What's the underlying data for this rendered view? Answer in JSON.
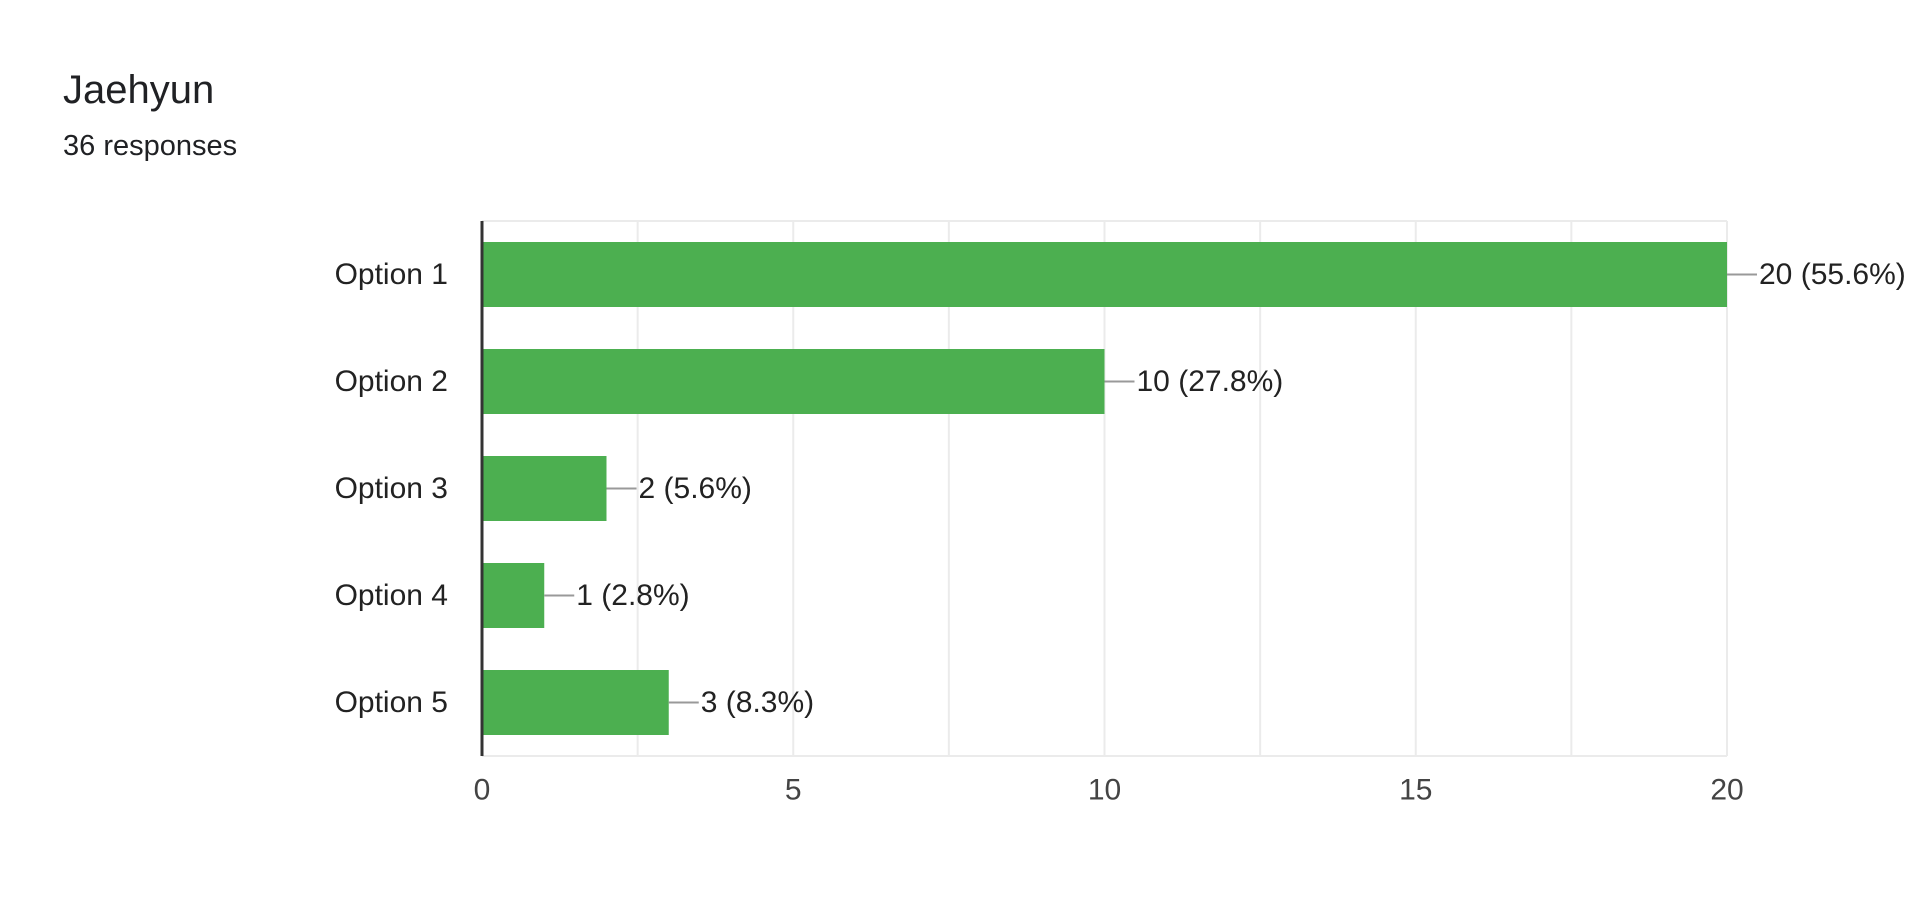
{
  "question": {
    "title": "Jaehyun",
    "responses": "36 responses"
  },
  "colors": {
    "bar": "#4caf50",
    "grid": "#ebebeb",
    "axis": "#333333",
    "leader": "#999999"
  },
  "chart_data": {
    "type": "bar",
    "orientation": "horizontal",
    "categories": [
      "Option 1",
      "Option 2",
      "Option 3",
      "Option 4",
      "Option 5"
    ],
    "values": [
      20,
      10,
      2,
      1,
      3
    ],
    "value_labels": [
      "20 (55.6%)",
      "10 (27.8%)",
      "2 (5.6%)",
      "1 (2.8%)",
      "3 (8.3%)"
    ],
    "xlim": [
      0,
      20
    ],
    "xticks": [
      0,
      5,
      10,
      15,
      20
    ],
    "grid": true,
    "title": "",
    "xlabel": "",
    "ylabel": ""
  }
}
